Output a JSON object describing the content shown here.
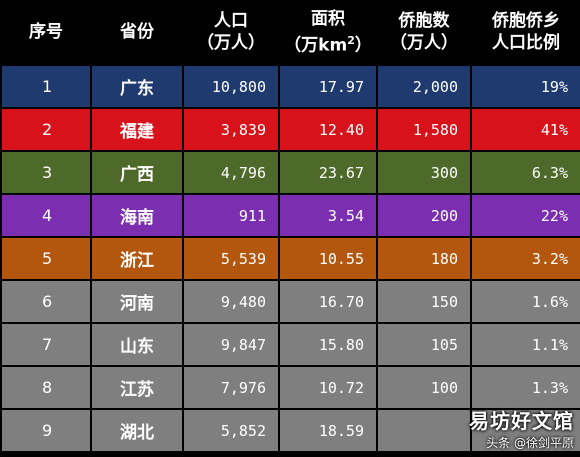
{
  "table": {
    "headers": [
      [
        "序号"
      ],
      [
        "省份"
      ],
      [
        "人口",
        "（万人）"
      ],
      [
        "面积",
        "（万km",
        "2",
        "）"
      ],
      [
        "侨胞数",
        "（万人）"
      ],
      [
        "侨胞侨乡",
        "人口比例"
      ]
    ],
    "rows": [
      {
        "no": "1",
        "province": "广东",
        "population": "10,800",
        "area": "17.97",
        "overseas": "2,000",
        "ratio": "19%",
        "color": "#1F3A6E"
      },
      {
        "no": "2",
        "province": "福建",
        "population": "3,839",
        "area": "12.40",
        "overseas": "1,580",
        "ratio": "41%",
        "color": "#D8121A"
      },
      {
        "no": "3",
        "province": "广西",
        "population": "4,796",
        "area": "23.67",
        "overseas": "300",
        "ratio": "6.3%",
        "color": "#4E6A2A"
      },
      {
        "no": "4",
        "province": "海南",
        "population": "911",
        "area": "3.54",
        "overseas": "200",
        "ratio": "22%",
        "color": "#7B2FB0"
      },
      {
        "no": "5",
        "province": "浙江",
        "population": "5,539",
        "area": "10.55",
        "overseas": "180",
        "ratio": "3.2%",
        "color": "#B4570E"
      },
      {
        "no": "6",
        "province": "河南",
        "population": "9,480",
        "area": "16.70",
        "overseas": "150",
        "ratio": "1.6%",
        "color": "#7F7F7F"
      },
      {
        "no": "7",
        "province": "山东",
        "population": "9,847",
        "area": "15.80",
        "overseas": "105",
        "ratio": "1.1%",
        "color": "#7F7F7F"
      },
      {
        "no": "8",
        "province": "江苏",
        "population": "7,976",
        "area": "10.72",
        "overseas": "100",
        "ratio": "1.3%",
        "color": "#7F7F7F"
      },
      {
        "no": "9",
        "province": "湖北",
        "population": "5,852",
        "area": "18.59",
        "overseas": "",
        "ratio": "",
        "color": "#7F7F7F"
      }
    ]
  },
  "watermark": {
    "title": "易坊好文馆",
    "author": "头条 @徐剑平原"
  }
}
